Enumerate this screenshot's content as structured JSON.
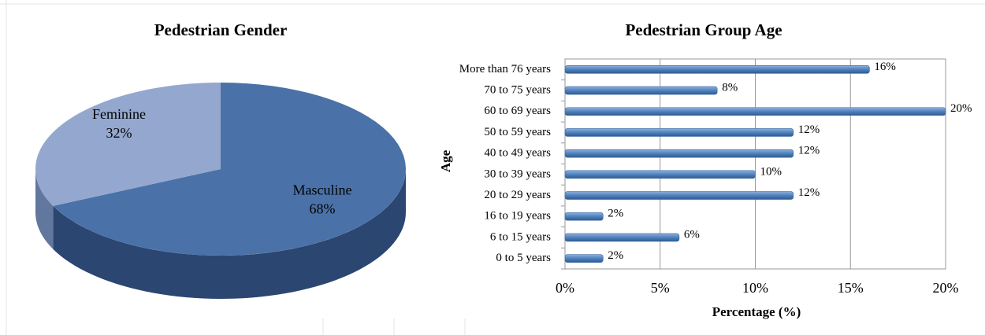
{
  "chart_data": [
    {
      "type": "pie",
      "title": "Pedestrian Gender",
      "categories": [
        "Masculine",
        "Feminine"
      ],
      "values": [
        68,
        32
      ],
      "value_labels": [
        "68%",
        "32%"
      ],
      "colors": [
        "#4a72a8",
        "#94a8cf"
      ],
      "side_colors": [
        "#2b4670",
        "#62779e"
      ]
    },
    {
      "type": "hbar",
      "title": "Pedestrian Group Age",
      "categories": [
        "0 to 5 years",
        "6 to 15 years",
        "16 to 19 years",
        "20 to 29 years",
        "30 to 39 years",
        "40 to 49 years",
        "50 to 59 years",
        "60 to 69 years",
        "70 to 75 years",
        "More than 76 years"
      ],
      "values": [
        2,
        6,
        2,
        12,
        10,
        12,
        12,
        20,
        8,
        16
      ],
      "value_labels": [
        "2%",
        "6%",
        "2%",
        "12%",
        "10%",
        "12%",
        "12%",
        "20%",
        "8%",
        "16%"
      ],
      "color": "#4f81bd",
      "xlim": [
        0,
        20
      ],
      "xticks": [
        {
          "value": 0,
          "label": "0%"
        },
        {
          "value": 5,
          "label": "5%"
        },
        {
          "value": 10,
          "label": "10%"
        },
        {
          "value": 15,
          "label": "15%"
        },
        {
          "value": 20,
          "label": "20%"
        }
      ],
      "xlabel": "Percentage (%)",
      "ylabel": "Age",
      "grid": true
    }
  ]
}
